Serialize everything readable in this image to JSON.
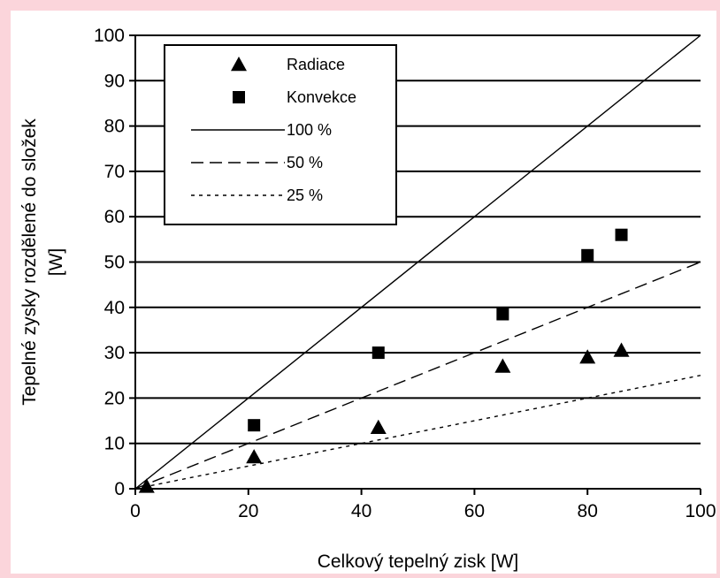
{
  "chart_data": {
    "type": "scatter",
    "xlabel": "Celkový tepelný zisk [W]",
    "ylabel": "Tepelné zysky rozdělené do složek [W]",
    "ylabel_lines": [
      "Tepelné zysky rozdělené do složek",
      "[W]"
    ],
    "xlim": [
      0,
      100
    ],
    "ylim": [
      0,
      100
    ],
    "x_ticks": [
      "0",
      "20",
      "40",
      "60",
      "80",
      "100"
    ],
    "y_ticks": [
      "0",
      "10",
      "20",
      "30",
      "40",
      "50",
      "60",
      "70",
      "80",
      "90",
      "100"
    ],
    "grid": "horizontal",
    "legend_position": "top-left",
    "series": [
      {
        "name": "Radiace",
        "marker": "triangle",
        "points": [
          [
            2,
            0.5
          ],
          [
            21,
            7
          ],
          [
            43,
            13.5
          ],
          [
            65,
            27
          ],
          [
            80,
            29
          ],
          [
            86,
            30.5
          ]
        ]
      },
      {
        "name": "Konvekce",
        "marker": "square",
        "points": [
          [
            21,
            14
          ],
          [
            43,
            30
          ],
          [
            65,
            38.5
          ],
          [
            80,
            51.5
          ],
          [
            86,
            56
          ]
        ]
      }
    ],
    "reference_lines": [
      {
        "name": "100 %",
        "slope": 1.0,
        "style": "solid"
      },
      {
        "name": "50 %",
        "slope": 0.5,
        "style": "dashed"
      },
      {
        "name": "25 %",
        "slope": 0.25,
        "style": "dotted"
      }
    ]
  }
}
